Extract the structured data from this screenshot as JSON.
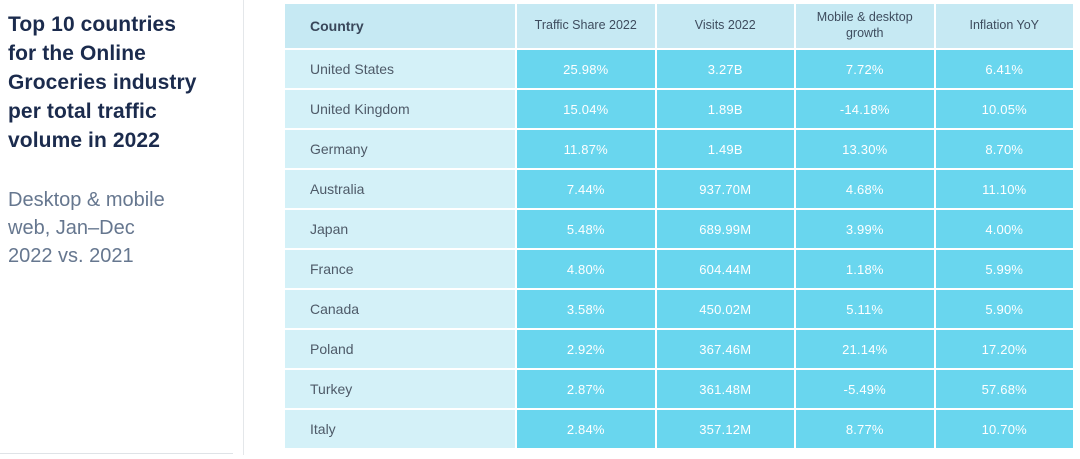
{
  "page": {
    "background": "#ffffff"
  },
  "left_panel": {
    "title": "Top 10 countries for the Online Groceries industry per total traffic volume in 2022",
    "subtitle": "Desktop & mobile web, Jan–Dec 2022 vs. 2021",
    "title_color": "#1b2b4d",
    "subtitle_color": "#66778f"
  },
  "table": {
    "columns": [
      "Country",
      "Traffic Share 2022",
      "Visits 2022",
      "Mobile & desktop growth",
      "Inflation YoY"
    ],
    "colors": {
      "header_bg": "#c6e9f3",
      "country_cell_bg": "#d4f1f8",
      "value_cell_bg": "#69d6ee",
      "header_text": "#3e4c5e",
      "country_text": "#4e5a68",
      "value_text": "#ffffff"
    },
    "rows": [
      {
        "country": "United States",
        "traffic_share": "25.98%",
        "visits": "3.27B",
        "growth": "7.72%",
        "inflation": "6.41%"
      },
      {
        "country": "United Kingdom",
        "traffic_share": "15.04%",
        "visits": "1.89B",
        "growth": "-14.18%",
        "inflation": "10.05%"
      },
      {
        "country": "Germany",
        "traffic_share": "11.87%",
        "visits": "1.49B",
        "growth": "13.30%",
        "inflation": "8.70%"
      },
      {
        "country": "Australia",
        "traffic_share": "7.44%",
        "visits": "937.70M",
        "growth": "4.68%",
        "inflation": "11.10%"
      },
      {
        "country": "Japan",
        "traffic_share": "5.48%",
        "visits": "689.99M",
        "growth": "3.99%",
        "inflation": "4.00%"
      },
      {
        "country": "France",
        "traffic_share": "4.80%",
        "visits": "604.44M",
        "growth": "1.18%",
        "inflation": "5.99%"
      },
      {
        "country": "Canada",
        "traffic_share": "3.58%",
        "visits": "450.02M",
        "growth": "5.11%",
        "inflation": "5.90%"
      },
      {
        "country": "Poland",
        "traffic_share": "2.92%",
        "visits": "367.46M",
        "growth": "21.14%",
        "inflation": "17.20%"
      },
      {
        "country": "Turkey",
        "traffic_share": "2.87%",
        "visits": "361.48M",
        "growth": "-5.49%",
        "inflation": "57.68%"
      },
      {
        "country": "Italy",
        "traffic_share": "2.84%",
        "visits": "357.12M",
        "growth": "8.77%",
        "inflation": "10.70%"
      }
    ]
  },
  "chart_data": {
    "type": "table",
    "title": "Top 10 countries for the Online Groceries industry per total traffic volume in 2022",
    "subtitle": "Desktop & mobile web, Jan–Dec 2022 vs. 2021",
    "columns": [
      "Country",
      "Traffic Share 2022",
      "Visits 2022",
      "Mobile & desktop growth",
      "Inflation YoY"
    ],
    "rows": [
      [
        "United States",
        "25.98%",
        "3.27B",
        "7.72%",
        "6.41%"
      ],
      [
        "United Kingdom",
        "15.04%",
        "1.89B",
        "-14.18%",
        "10.05%"
      ],
      [
        "Germany",
        "11.87%",
        "1.49B",
        "13.30%",
        "8.70%"
      ],
      [
        "Australia",
        "7.44%",
        "937.70M",
        "4.68%",
        "11.10%"
      ],
      [
        "Japan",
        "5.48%",
        "689.99M",
        "3.99%",
        "4.00%"
      ],
      [
        "France",
        "4.80%",
        "604.44M",
        "1.18%",
        "5.99%"
      ],
      [
        "Canada",
        "3.58%",
        "450.02M",
        "5.11%",
        "5.90%"
      ],
      [
        "Poland",
        "2.92%",
        "367.46M",
        "21.14%",
        "17.20%"
      ],
      [
        "Turkey",
        "2.87%",
        "361.48M",
        "-5.49%",
        "57.68%"
      ],
      [
        "Italy",
        "2.84%",
        "357.12M",
        "8.77%",
        "10.70%"
      ]
    ]
  }
}
